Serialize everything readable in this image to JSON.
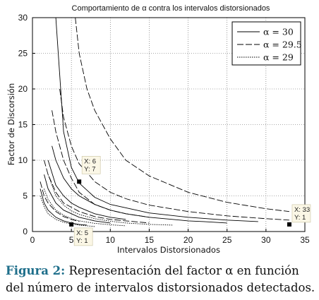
{
  "chart_data": {
    "type": "line",
    "title": "Comportamiento de α contra los intervalos distorsionados",
    "xlabel": "Intervalos Distorsionados",
    "ylabel": "Factor de Discorsión",
    "xlim": [
      0,
      35
    ],
    "ylim": [
      0,
      30
    ],
    "xticks": [
      0,
      5,
      10,
      15,
      20,
      25,
      30,
      35
    ],
    "yticks": [
      0,
      5,
      10,
      15,
      20,
      25,
      30
    ],
    "grid": true,
    "legend_position": "top-right",
    "series": [
      {
        "name": "α = 30",
        "style": "solid",
        "curves": [
          {
            "x": [
              1,
              1.5,
              2,
              3,
              4,
              5,
              6,
              7
            ],
            "y": [
              6,
              4,
              3,
              2,
              1.5,
              1.2,
              1,
              0.9
            ]
          },
          {
            "x": [
              1.5,
              2,
              3,
              4,
              6,
              8,
              10
            ],
            "y": [
              8,
              6,
              4,
              3,
              2,
              1.5,
              1.2
            ]
          },
          {
            "x": [
              2,
              3,
              4,
              5,
              6,
              8,
              10,
              12
            ],
            "y": [
              10,
              6.5,
              5,
              4,
              3.4,
              2.5,
              2,
              1.7
            ]
          },
          {
            "x": [
              2.5,
              3,
              4,
              5,
              6,
              8,
              10,
              12,
              15,
              18,
              20,
              22,
              25
            ],
            "y": [
              12,
              10,
              7.5,
              6,
              5,
              3.8,
              3,
              2.5,
              2,
              1.7,
              1.5,
              1.4,
              1.2
            ]
          },
          {
            "x": [
              3,
              3.5,
              4,
              5,
              6,
              8,
              10,
              15,
              20,
              25,
              29
            ],
            "y": [
              30,
              22,
              14,
              9,
              6.8,
              4.8,
              3.8,
              2.6,
              2,
              1.6,
              1.4
            ]
          }
        ]
      },
      {
        "name": "α = 29.5",
        "style": "dashed",
        "curves": [
          {
            "x": [
              1,
              1.5,
              2,
              3,
              4,
              5,
              6
            ],
            "y": [
              7,
              5,
              4,
              2.8,
              2.1,
              1.7,
              1.4
            ]
          },
          {
            "x": [
              1.5,
              2,
              3,
              4,
              6,
              8,
              10,
              12,
              15
            ],
            "y": [
              10,
              8,
              5.5,
              4,
              2.8,
              2.1,
              1.7,
              1.5,
              1.2
            ]
          },
          {
            "x": [
              2.5,
              3,
              4,
              5,
              6,
              8,
              10,
              12,
              15
            ],
            "y": [
              17,
              14,
              10,
              7.5,
              5.5,
              3.8,
              3,
              2.5,
              2
            ]
          },
          {
            "x": [
              3.5,
              4,
              5,
              6,
              7,
              8,
              10,
              12,
              15,
              20,
              25,
              30,
              33
            ],
            "y": [
              20,
              16,
              12,
              9.5,
              8.3,
              7,
              5.5,
              4.6,
              3.7,
              2.8,
              2.2,
              1.8,
              1.6
            ]
          },
          {
            "x": [
              5.5,
              6,
              7,
              8,
              10,
              12,
              15,
              20,
              25,
              30,
              33
            ],
            "y": [
              30,
              25,
              20,
              17,
              13,
              10,
              7.8,
              5.5,
              4.1,
              3.2,
              2.8
            ]
          }
        ]
      },
      {
        "name": "α = 29",
        "style": "dotted",
        "curves": [
          {
            "x": [
              1,
              1.5,
              2,
              3,
              4,
              5,
              6,
              7,
              8
            ],
            "y": [
              5,
              3.5,
              2.5,
              1.7,
              1.3,
              1.05,
              0.9,
              0.8,
              0.7
            ]
          },
          {
            "x": [
              1.5,
              2,
              3,
              4,
              5,
              6,
              8,
              10,
              12
            ],
            "y": [
              6,
              4.5,
              3,
              2.3,
              1.8,
              1.5,
              1.15,
              0.95,
              0.8
            ]
          },
          {
            "x": [
              2,
              3,
              4,
              5,
              6,
              8,
              10,
              12,
              15,
              18
            ],
            "y": [
              8,
              5,
              3.7,
              2.9,
              2.4,
              1.8,
              1.45,
              1.2,
              1,
              0.9
            ]
          }
        ]
      }
    ],
    "datatips": [
      {
        "x": 6,
        "y": 7,
        "label_x": "X: 6",
        "label_y": "Y: 7"
      },
      {
        "x": 5,
        "y": 1,
        "label_x": "X: 5",
        "label_y": "Y: 1"
      },
      {
        "x": 33,
        "y": 1,
        "label_x": "X: 33",
        "label_y": "Y: 1"
      }
    ]
  },
  "caption": {
    "label": "Figura 2:",
    "text": " Representación del factor α en función del número de intervalos distorsionados detectados."
  }
}
